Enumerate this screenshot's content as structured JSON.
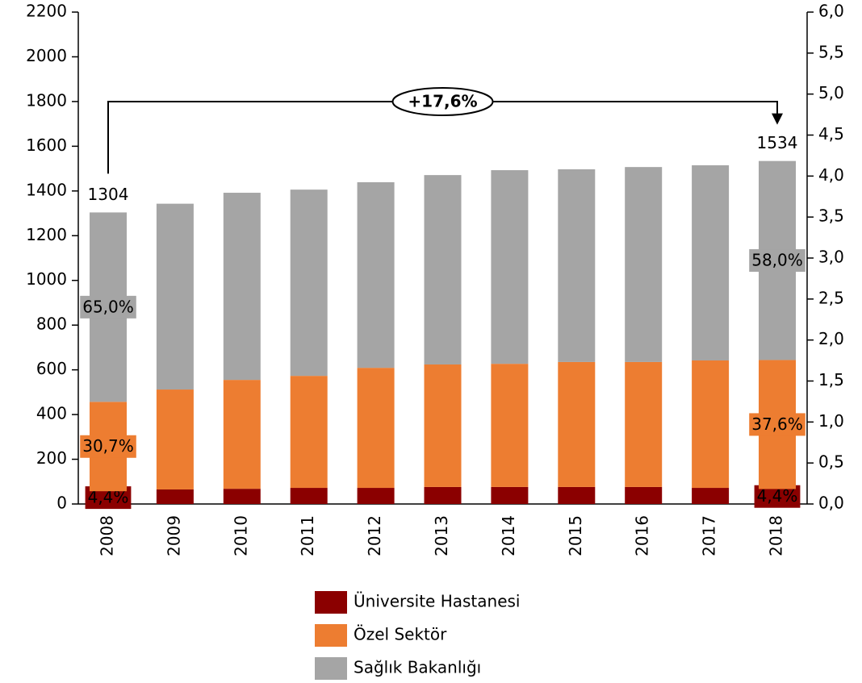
{
  "chart_data": {
    "type": "stacked_bar",
    "categories": [
      "2008",
      "2009",
      "2010",
      "2011",
      "2012",
      "2013",
      "2014",
      "2015",
      "2016",
      "2017",
      "2018"
    ],
    "series": [
      {
        "name": "Üniversite Hastanesi",
        "color": "#8b0000",
        "values": [
          57,
          65,
          68,
          72,
          72,
          76,
          76,
          76,
          76,
          72,
          67
        ],
        "share_labels": [
          "4,4%",
          null,
          null,
          null,
          null,
          null,
          null,
          null,
          null,
          null,
          "4,4%"
        ]
      },
      {
        "name": "Özel Sektör",
        "color": "#ed7d31",
        "values": [
          400,
          447,
          487,
          501,
          537,
          548,
          551,
          559,
          559,
          570,
          577
        ],
        "share_labels": [
          "30,7%",
          null,
          null,
          null,
          null,
          null,
          null,
          null,
          null,
          null,
          "37,6%"
        ]
      },
      {
        "name": "Sağlık Bakanlığı",
        "color": "#a5a5a5",
        "values": [
          847,
          831,
          837,
          833,
          830,
          847,
          866,
          862,
          872,
          873,
          890
        ],
        "share_labels": [
          "65,0%",
          null,
          null,
          null,
          null,
          null,
          null,
          null,
          null,
          null,
          "58,0%"
        ]
      }
    ],
    "totals": [
      1304,
      null,
      null,
      null,
      null,
      null,
      null,
      null,
      null,
      null,
      1534
    ],
    "annotation": "+17,6%",
    "ylim": [
      0,
      2200
    ],
    "yticks": [
      0,
      200,
      400,
      600,
      800,
      1000,
      1200,
      1400,
      1600,
      1800,
      2000,
      2200
    ],
    "y2lim": [
      0,
      6
    ],
    "y2ticks": [
      {
        "value": 0,
        "label": "0,0"
      },
      {
        "value": 0.5,
        "label": "0,5"
      },
      {
        "value": 1,
        "label": "1,0"
      },
      {
        "value": 1.5,
        "label": "1,5"
      },
      {
        "value": 2,
        "label": "2,0"
      },
      {
        "value": 2.5,
        "label": "2,5"
      },
      {
        "value": 3,
        "label": "3,0"
      },
      {
        "value": 3.5,
        "label": "3,5"
      },
      {
        "value": 4,
        "label": "4,0"
      },
      {
        "value": 4.5,
        "label": "4,5"
      },
      {
        "value": 5,
        "label": "5,0"
      },
      {
        "value": 5.5,
        "label": "5,5"
      },
      {
        "value": 6,
        "label": "6,0"
      }
    ],
    "grid": false,
    "legend": "bottom"
  }
}
